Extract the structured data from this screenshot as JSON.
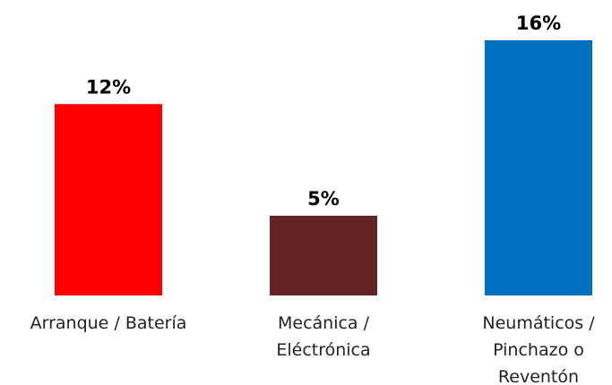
{
  "chart_data": {
    "type": "bar",
    "title": "",
    "xlabel": "",
    "ylabel": "",
    "categories": [
      [
        "Arranque / Batería"
      ],
      [
        "Mecánica /",
        "Eléctrónica"
      ],
      [
        "Neumáticos /",
        "Pinchazo o",
        "Reventón"
      ]
    ],
    "values": [
      12,
      5,
      16
    ],
    "value_labels": [
      "12%",
      "5%",
      "16%"
    ],
    "colors": [
      "#ff0000",
      "#652424",
      "#0070c0"
    ],
    "ylim": [
      0,
      16
    ],
    "grid": false,
    "legend": "none"
  }
}
